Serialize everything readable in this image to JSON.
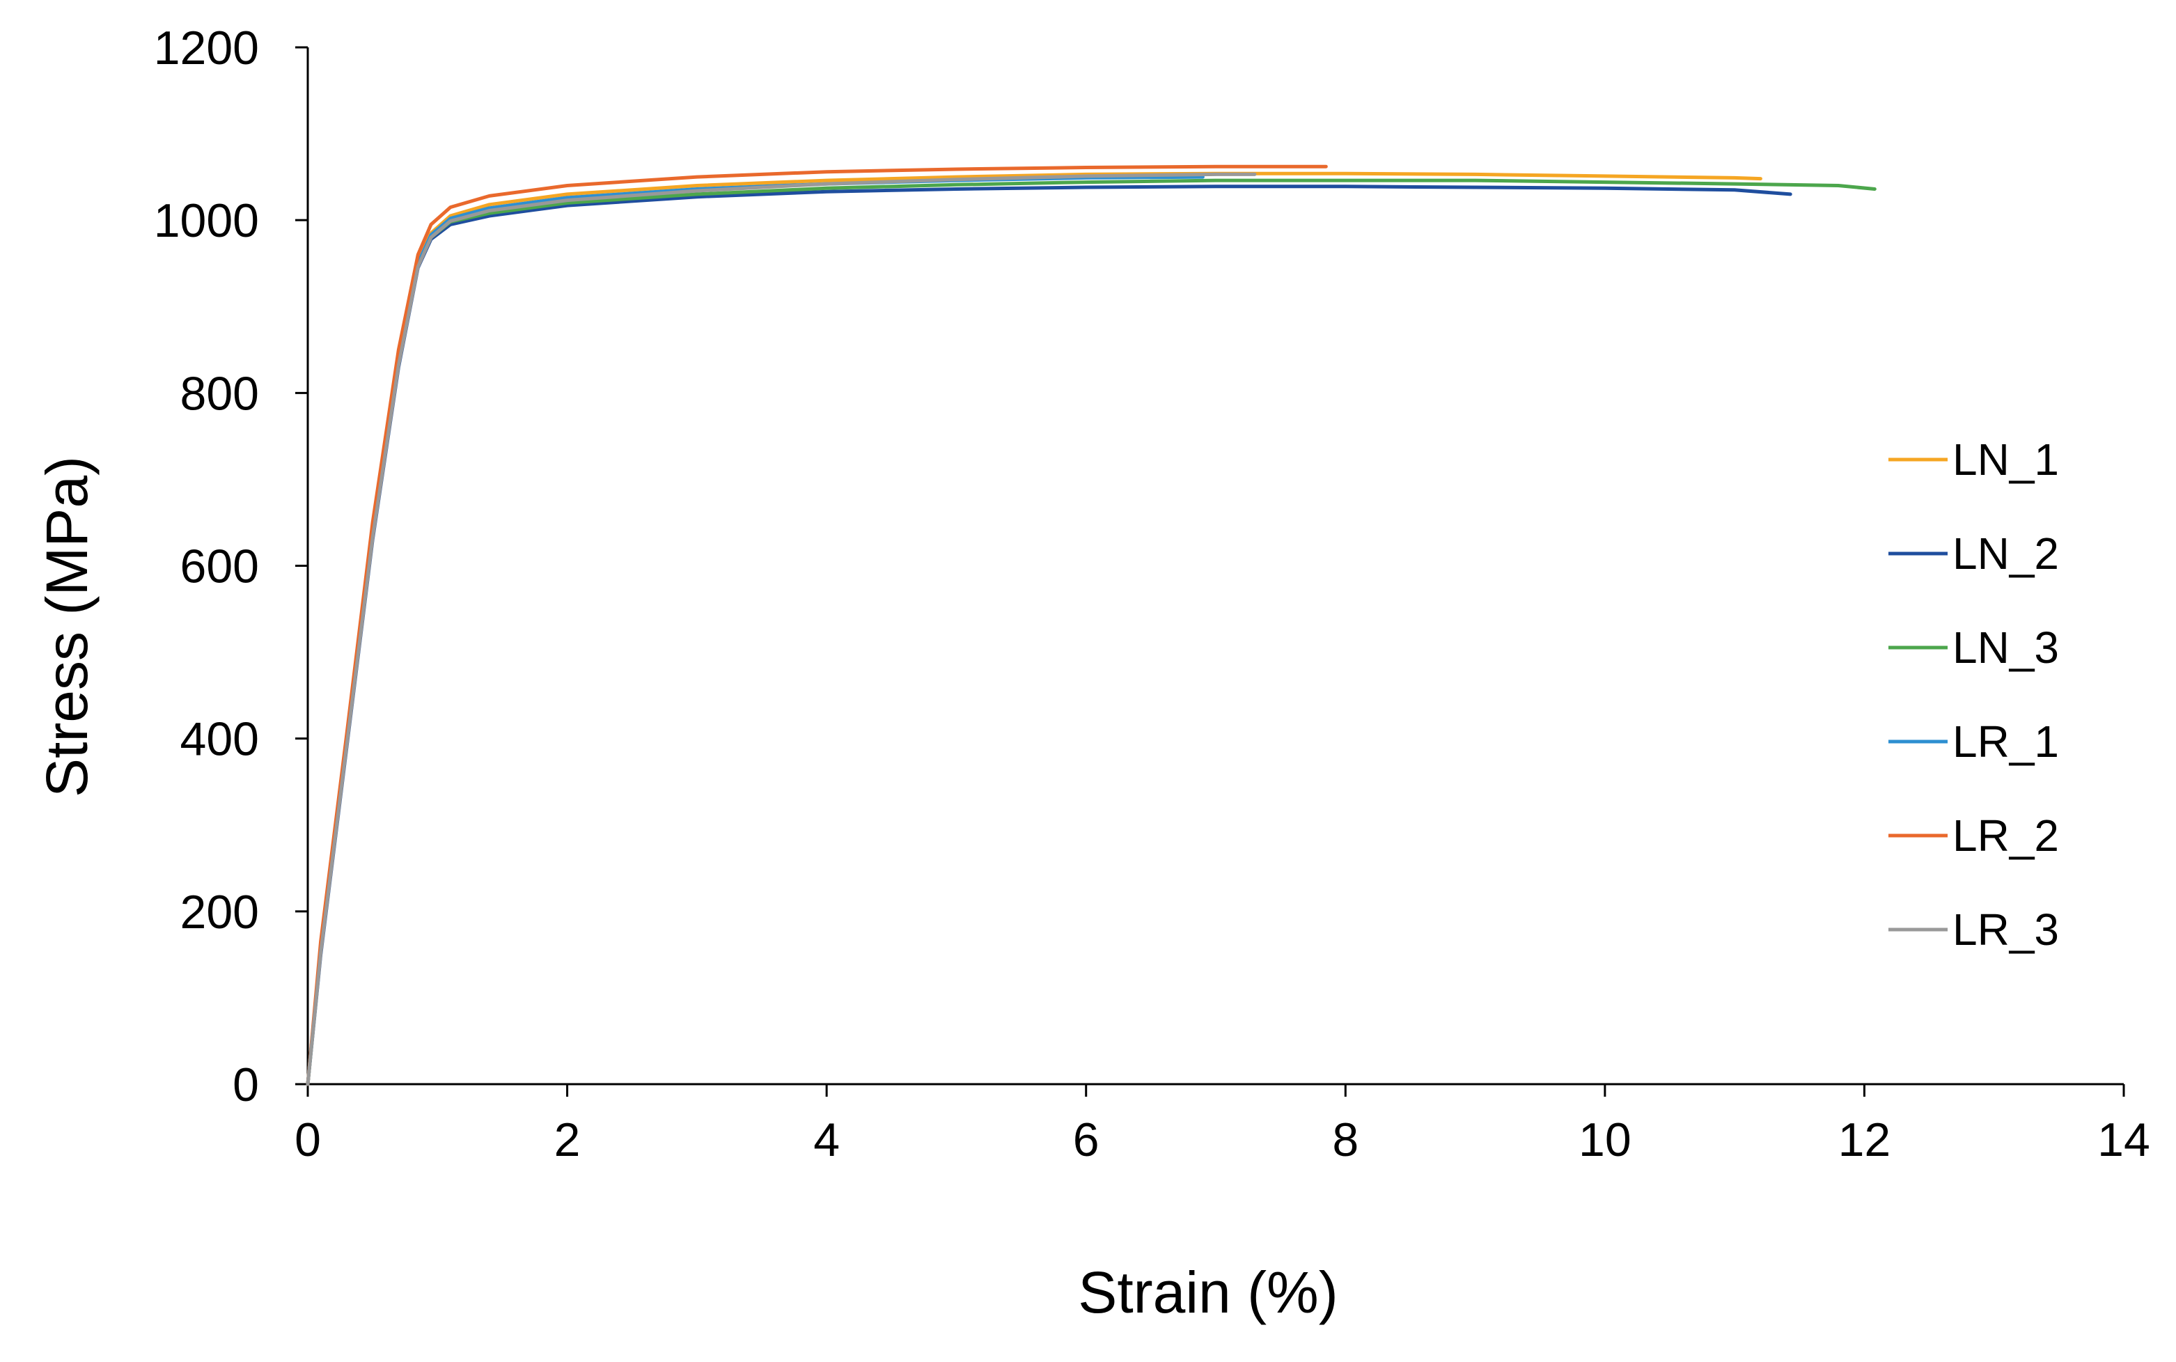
{
  "chart_data": {
    "type": "line",
    "title": "",
    "xlabel": "Strain (%)",
    "ylabel": "Stress (MPa)",
    "xlim": [
      0,
      14
    ],
    "ylim": [
      0,
      1200
    ],
    "xticks": [
      0,
      2,
      4,
      6,
      8,
      10,
      12,
      14
    ],
    "yticks": [
      0,
      200,
      400,
      600,
      800,
      1000,
      1200
    ],
    "grid": false,
    "legend_position": "right",
    "series": [
      {
        "name": "LN_1",
        "color": "#F5A623",
        "x": [
          0,
          0.1,
          0.3,
          0.5,
          0.7,
          0.85,
          0.95,
          1.1,
          1.4,
          2.0,
          3.0,
          4.0,
          5.0,
          6.0,
          7.0,
          8.0,
          9.0,
          10.0,
          11.0,
          11.2
        ],
        "y": [
          0,
          160,
          400,
          640,
          840,
          950,
          985,
          1005,
          1018,
          1030,
          1040,
          1046,
          1050,
          1053,
          1054,
          1054,
          1053,
          1051,
          1049,
          1048
        ]
      },
      {
        "name": "LN_2",
        "color": "#1F4E9E",
        "x": [
          0,
          0.1,
          0.3,
          0.5,
          0.7,
          0.85,
          0.95,
          1.1,
          1.4,
          2.0,
          3.0,
          4.0,
          5.0,
          6.0,
          7.0,
          8.0,
          9.0,
          10.0,
          11.0,
          11.43
        ],
        "y": [
          0,
          150,
          390,
          630,
          830,
          945,
          978,
          995,
          1005,
          1017,
          1027,
          1033,
          1036,
          1038,
          1039,
          1039,
          1038,
          1037,
          1035,
          1030
        ]
      },
      {
        "name": "LN_3",
        "color": "#4CA64C",
        "x": [
          0,
          0.1,
          0.3,
          0.5,
          0.7,
          0.85,
          0.95,
          1.1,
          1.4,
          2.0,
          3.0,
          4.0,
          5.0,
          6.0,
          7.0,
          8.0,
          9.0,
          10.0,
          11.0,
          11.8,
          12.08
        ],
        "y": [
          0,
          155,
          395,
          635,
          835,
          948,
          980,
          998,
          1008,
          1020,
          1030,
          1037,
          1041,
          1044,
          1046,
          1046,
          1046,
          1044,
          1042,
          1040,
          1036
        ]
      },
      {
        "name": "LR_1",
        "color": "#2E8FD1",
        "x": [
          0,
          0.1,
          0.3,
          0.5,
          0.7,
          0.85,
          0.95,
          1.1,
          1.4,
          2.0,
          3.0,
          4.0,
          5.0,
          6.0,
          6.9
        ],
        "y": [
          0,
          158,
          398,
          638,
          838,
          950,
          983,
          1002,
          1014,
          1026,
          1036,
          1042,
          1046,
          1049,
          1050
        ]
      },
      {
        "name": "LR_2",
        "color": "#E9692C",
        "x": [
          0,
          0.1,
          0.3,
          0.5,
          0.7,
          0.85,
          0.95,
          1.1,
          1.4,
          2.0,
          3.0,
          4.0,
          5.0,
          6.0,
          7.0,
          7.85
        ],
        "y": [
          0,
          165,
          405,
          650,
          850,
          960,
          995,
          1015,
          1028,
          1040,
          1050,
          1056,
          1059,
          1061,
          1062,
          1062
        ]
      },
      {
        "name": "LR_3",
        "color": "#999999",
        "x": [
          0,
          0.1,
          0.3,
          0.5,
          0.7,
          0.85,
          0.95,
          1.1,
          1.4,
          2.0,
          3.0,
          4.0,
          5.0,
          6.0,
          7.0,
          7.3
        ],
        "y": [
          0,
          152,
          392,
          632,
          832,
          946,
          980,
          999,
          1011,
          1023,
          1034,
          1042,
          1047,
          1051,
          1053,
          1053
        ]
      }
    ]
  }
}
